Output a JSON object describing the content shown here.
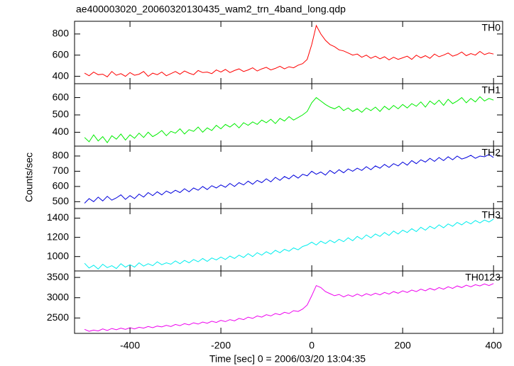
{
  "chart_data": {
    "type": "line",
    "title": "ae400003020_20060320130435_wam2_trn_4band_long.qdp",
    "xlabel": "Time [sec] 0 = 2006/03/20 13:04:35",
    "ylabel": "Counts/sec",
    "xlim": [
      -522,
      420
    ],
    "xticks": [
      -400,
      -200,
      0,
      200,
      400
    ],
    "x": [
      -500,
      -490,
      -480,
      -470,
      -460,
      -450,
      -440,
      -430,
      -420,
      -410,
      -400,
      -390,
      -380,
      -370,
      -360,
      -350,
      -340,
      -330,
      -320,
      -310,
      -300,
      -290,
      -280,
      -270,
      -260,
      -250,
      -240,
      -230,
      -220,
      -210,
      -200,
      -190,
      -180,
      -170,
      -160,
      -150,
      -140,
      -130,
      -120,
      -110,
      -100,
      -90,
      -80,
      -70,
      -60,
      -50,
      -40,
      -30,
      -20,
      -10,
      0,
      10,
      20,
      30,
      40,
      50,
      60,
      70,
      80,
      90,
      100,
      110,
      120,
      130,
      140,
      150,
      160,
      170,
      180,
      190,
      200,
      210,
      220,
      230,
      240,
      250,
      260,
      270,
      280,
      290,
      300,
      310,
      320,
      330,
      340,
      350,
      360,
      370,
      380,
      390,
      400
    ],
    "series": [
      {
        "name": "TH0",
        "color": "#ff0000",
        "ylim": [
          330,
          920
        ],
        "yticks": [
          400,
          600,
          800
        ],
        "values": [
          430,
          405,
          440,
          415,
          420,
          395,
          445,
          410,
          425,
          400,
          435,
          410,
          420,
          445,
          400,
          430,
          415,
          440,
          405,
          425,
          445,
          420,
          450,
          430,
          415,
          455,
          435,
          440,
          425,
          460,
          440,
          465,
          435,
          455,
          470,
          445,
          460,
          480,
          450,
          470,
          485,
          460,
          475,
          495,
          470,
          490,
          480,
          505,
          520,
          560,
          700,
          880,
          800,
          740,
          700,
          680,
          650,
          640,
          620,
          600,
          610,
          580,
          600,
          570,
          590,
          565,
          585,
          555,
          580,
          560,
          575,
          590,
          560,
          600,
          575,
          595,
          570,
          610,
          585,
          600,
          620,
          590,
          605,
          630,
          595,
          615,
          600,
          635,
          605,
          620,
          610
        ]
      },
      {
        "name": "TH1",
        "color": "#00ee00",
        "ylim": [
          320,
          680
        ],
        "yticks": [
          400,
          500,
          600
        ],
        "values": [
          370,
          345,
          385,
          350,
          375,
          340,
          380,
          360,
          390,
          355,
          385,
          365,
          395,
          370,
          400,
          375,
          390,
          410,
          380,
          405,
          395,
          420,
          390,
          415,
          405,
          430,
          400,
          425,
          410,
          440,
          420,
          445,
          430,
          450,
          425,
          455,
          440,
          460,
          445,
          470,
          455,
          475,
          450,
          480,
          465,
          490,
          470,
          485,
          500,
          520,
          570,
          600,
          580,
          560,
          545,
          535,
          550,
          525,
          540,
          520,
          535,
          515,
          540,
          525,
          545,
          520,
          550,
          530,
          555,
          535,
          560,
          540,
          565,
          550,
          575,
          545,
          580,
          560,
          585,
          555,
          590,
          565,
          580,
          600,
          570,
          595,
          575,
          605,
          580,
          595,
          585
        ]
      },
      {
        "name": "TH2",
        "color": "#0000dd",
        "ylim": [
          455,
          865
        ],
        "yticks": [
          500,
          600,
          700,
          800
        ],
        "values": [
          490,
          520,
          500,
          530,
          505,
          535,
          510,
          525,
          545,
          515,
          540,
          520,
          550,
          530,
          560,
          540,
          565,
          545,
          570,
          555,
          575,
          560,
          585,
          565,
          590,
          575,
          600,
          580,
          605,
          590,
          610,
          595,
          620,
          600,
          625,
          610,
          635,
          615,
          640,
          625,
          650,
          630,
          660,
          640,
          665,
          650,
          675,
          655,
          680,
          670,
          700,
          680,
          695,
          675,
          705,
          685,
          710,
          690,
          715,
          700,
          720,
          705,
          730,
          710,
          735,
          720,
          745,
          725,
          750,
          735,
          760,
          740,
          770,
          750,
          775,
          760,
          785,
          765,
          790,
          770,
          795,
          775,
          800,
          780,
          790,
          805,
          785,
          800,
          795,
          810,
          790
        ]
      },
      {
        "name": "TH3",
        "color": "#00eeee",
        "ylim": [
          850,
          1500
        ],
        "yticks": [
          1000,
          1200,
          1400
        ],
        "values": [
          930,
          880,
          910,
          870,
          920,
          885,
          905,
          875,
          925,
          890,
          915,
          890,
          935,
          900,
          925,
          905,
          945,
          915,
          935,
          920,
          955,
          925,
          960,
          935,
          970,
          945,
          980,
          950,
          985,
          965,
          995,
          970,
          1005,
          980,
          1015,
          990,
          1030,
          1000,
          1040,
          1015,
          1050,
          1025,
          1065,
          1040,
          1075,
          1055,
          1090,
          1070,
          1105,
          1120,
          1150,
          1120,
          1160,
          1135,
          1170,
          1145,
          1180,
          1155,
          1195,
          1165,
          1210,
          1180,
          1225,
          1195,
          1235,
          1210,
          1250,
          1220,
          1265,
          1235,
          1275,
          1250,
          1290,
          1260,
          1305,
          1275,
          1315,
          1290,
          1330,
          1300,
          1340,
          1315,
          1355,
          1330,
          1365,
          1340,
          1375,
          1350,
          1380,
          1360,
          1390
        ]
      },
      {
        "name": "TH0123",
        "color": "#ee00ee",
        "ylim": [
          2120,
          3660
        ],
        "yticks": [
          2500,
          3000,
          3500
        ],
        "values": [
          2220,
          2170,
          2200,
          2180,
          2230,
          2190,
          2240,
          2210,
          2250,
          2220,
          2260,
          2230,
          2270,
          2250,
          2290,
          2260,
          2300,
          2280,
          2320,
          2290,
          2340,
          2310,
          2360,
          2330,
          2380,
          2350,
          2400,
          2370,
          2420,
          2390,
          2440,
          2410,
          2460,
          2430,
          2490,
          2460,
          2520,
          2490,
          2550,
          2520,
          2580,
          2550,
          2610,
          2580,
          2640,
          2610,
          2680,
          2660,
          2720,
          2820,
          3050,
          3300,
          3250,
          3150,
          3100,
          3050,
          3080,
          3020,
          3070,
          3030,
          3090,
          3040,
          3100,
          3060,
          3110,
          3070,
          3130,
          3090,
          3150,
          3110,
          3170,
          3130,
          3190,
          3150,
          3210,
          3170,
          3230,
          3190,
          3250,
          3210,
          3270,
          3230,
          3290,
          3250,
          3310,
          3270,
          3320,
          3290,
          3340,
          3300,
          3350
        ]
      }
    ]
  }
}
